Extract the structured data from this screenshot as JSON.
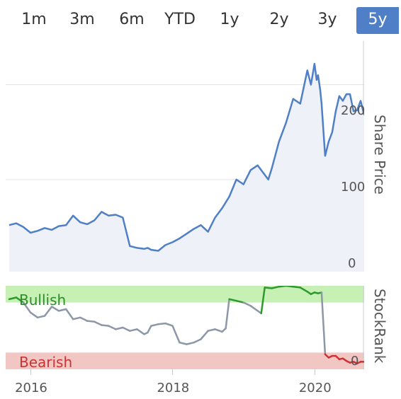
{
  "range_selector": {
    "tabs": [
      "1m",
      "3m",
      "6m",
      "YTD",
      "1y",
      "2y",
      "3y",
      "5y"
    ],
    "active": "5y",
    "active_color": "#4f7fc7"
  },
  "chart_data": [
    {
      "type": "area",
      "ylabel": "Share Price",
      "ylim": [
        0,
        240
      ],
      "yticks": [
        "0",
        "100",
        "200"
      ],
      "series_color": "#4f7fc7",
      "x": [
        2015.7,
        2015.8,
        2015.9,
        2016.0,
        2016.1,
        2016.2,
        2016.3,
        2016.4,
        2016.5,
        2016.6,
        2016.7,
        2016.8,
        2016.9,
        2017.0,
        2017.05,
        2017.1,
        2017.2,
        2017.3,
        2017.4,
        2017.5,
        2017.6,
        2017.65,
        2017.7,
        2017.8,
        2017.9,
        2018.0,
        2018.1,
        2018.2,
        2018.3,
        2018.4,
        2018.5,
        2018.6,
        2018.7,
        2018.8,
        2018.9,
        2019.0,
        2019.1,
        2019.2,
        2019.3,
        2019.35,
        2019.4,
        2019.5,
        2019.6,
        2019.7,
        2019.8,
        2019.9,
        2019.95,
        2020.0,
        2020.03,
        2020.05,
        2020.08,
        2020.1,
        2020.15,
        2020.2,
        2020.25,
        2020.3,
        2020.35,
        2020.4,
        2020.45,
        2020.5,
        2020.55,
        2020.6,
        2020.65,
        2020.7
      ],
      "values": [
        52,
        54,
        50,
        44,
        46,
        49,
        47,
        51,
        52,
        62,
        55,
        53,
        57,
        66,
        64,
        62,
        63,
        60,
        30,
        28,
        27,
        28,
        26,
        25,
        31,
        34,
        38,
        43,
        48,
        52,
        45,
        60,
        70,
        82,
        100,
        95,
        110,
        115,
        105,
        100,
        112,
        140,
        160,
        185,
        180,
        215,
        200,
        222,
        205,
        210,
        195,
        180,
        125,
        140,
        150,
        172,
        188,
        183,
        190,
        190,
        172,
        173,
        183,
        168
      ]
    },
    {
      "type": "line",
      "ylabel": "StockRank",
      "ylim": [
        0,
        100
      ],
      "yticks": [
        "0"
      ],
      "bands": [
        {
          "label": "Bullish",
          "from": 80,
          "to": 100,
          "color": "#c6f0b4",
          "text_color": "#2e8b2e"
        },
        {
          "label": "Bearish",
          "from": 0,
          "to": 20,
          "color": "#f1c6c3",
          "text_color": "#cc3333"
        }
      ],
      "xticks": [
        "2016",
        "2018",
        "2020"
      ],
      "x": [
        2015.7,
        2015.8,
        2015.9,
        2016.0,
        2016.1,
        2016.2,
        2016.3,
        2016.4,
        2016.5,
        2016.6,
        2016.7,
        2016.8,
        2016.9,
        2017.0,
        2017.1,
        2017.2,
        2017.3,
        2017.4,
        2017.5,
        2017.6,
        2017.65,
        2017.7,
        2017.8,
        2017.9,
        2018.0,
        2018.1,
        2018.2,
        2018.3,
        2018.4,
        2018.5,
        2018.6,
        2018.7,
        2018.75,
        2018.8,
        2018.9,
        2019.0,
        2019.1,
        2019.2,
        2019.25,
        2019.3,
        2019.4,
        2019.5,
        2019.6,
        2019.7,
        2019.8,
        2019.9,
        2019.95,
        2020.0,
        2020.05,
        2020.1,
        2020.15,
        2020.2,
        2020.25,
        2020.3,
        2020.35,
        2020.4,
        2020.45,
        2020.5,
        2020.55,
        2020.6,
        2020.65,
        2020.7
      ],
      "values": [
        84,
        86,
        80,
        68,
        62,
        64,
        75,
        70,
        72,
        60,
        62,
        58,
        57,
        53,
        52,
        48,
        50,
        46,
        48,
        42,
        44,
        52,
        54,
        55,
        52,
        32,
        30,
        32,
        36,
        46,
        48,
        45,
        49,
        84,
        82,
        80,
        76,
        70,
        67,
        98,
        97,
        99,
        100,
        99,
        98,
        93,
        90,
        92,
        91,
        92,
        18,
        14,
        16,
        16,
        12,
        13,
        10,
        8,
        9,
        7,
        9,
        9
      ]
    }
  ],
  "x_axis": {
    "min": 2015.65,
    "max": 2020.7,
    "ticks": [
      2016,
      2018,
      2020
    ],
    "tick_labels": [
      "2016",
      "2018",
      "2020"
    ]
  }
}
